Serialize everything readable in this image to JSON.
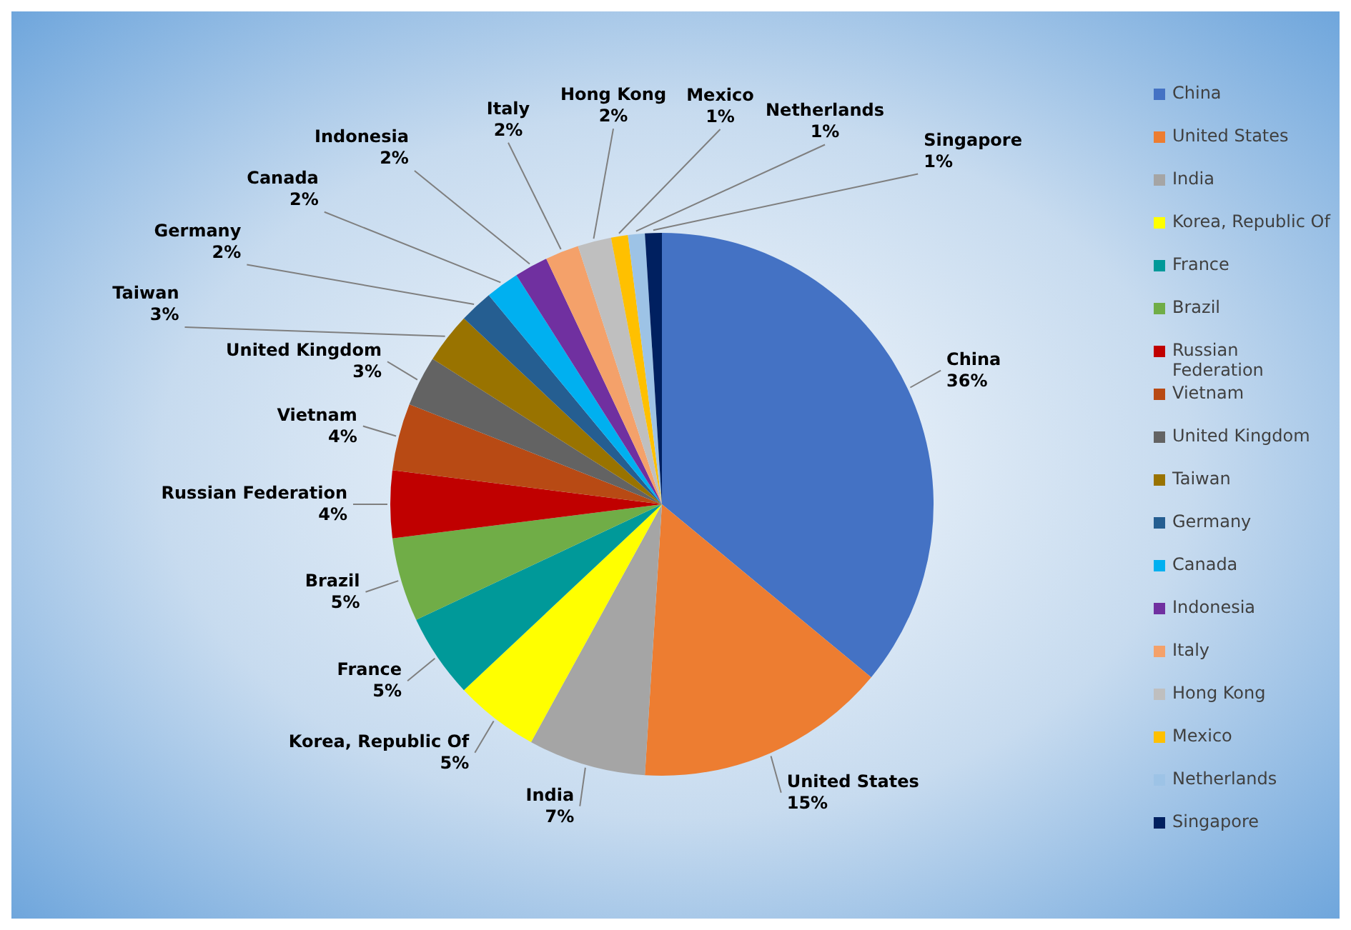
{
  "chart_data": {
    "type": "pie",
    "categories": [
      "China",
      "United States",
      "India",
      "Korea, Republic Of",
      "France",
      "Brazil",
      "Russian Federation",
      "Vietnam",
      "United Kingdom",
      "Taiwan",
      "Germany",
      "Canada",
      "Indonesia",
      "Italy",
      "Hong Kong",
      "Mexico",
      "Netherlands",
      "Singapore"
    ],
    "values": [
      36,
      15,
      7,
      5,
      5,
      5,
      4,
      4,
      3,
      3,
      2,
      2,
      2,
      2,
      2,
      1,
      1,
      1
    ],
    "value_labels": [
      "36%",
      "15%",
      "7%",
      "5%",
      "5%",
      "5%",
      "4%",
      "4%",
      "3%",
      "3%",
      "2%",
      "2%",
      "2%",
      "2%",
      "2%",
      "1%",
      "1%",
      "1%"
    ],
    "colors": [
      "#4472c4",
      "#ed7d31",
      "#a5a5a5",
      "#ffff00",
      "#009999",
      "#70ad47",
      "#c00000",
      "#b84a14",
      "#636363",
      "#997300",
      "#255e91",
      "#00b0f0",
      "#7030a0",
      "#f4a16a",
      "#bfbfbf",
      "#ffc000",
      "#9dc3e6",
      "#002060"
    ],
    "legend": "right"
  }
}
